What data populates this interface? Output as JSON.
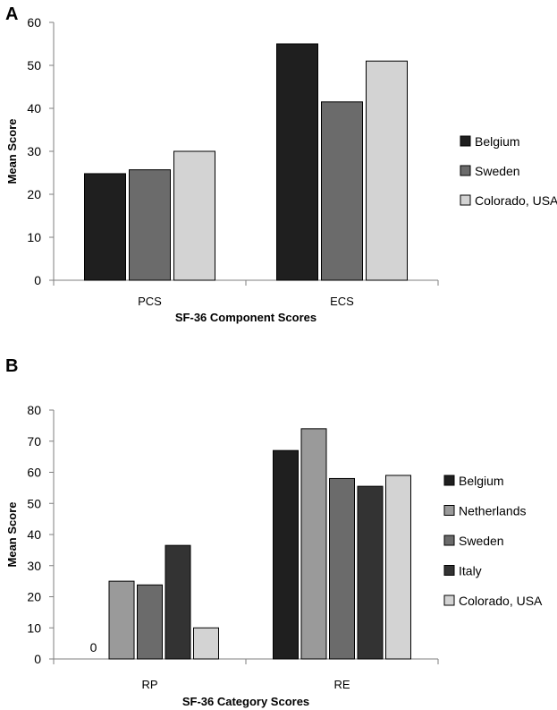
{
  "chart_data": [
    {
      "type": "bar",
      "panel_label": "A",
      "categories": [
        "PCS",
        "ECS"
      ],
      "series": [
        {
          "name": "Belgium",
          "color": "#1f1f1f",
          "values": [
            24.8,
            55
          ]
        },
        {
          "name": "Sweden",
          "color": "#6b6b6b",
          "values": [
            25.7,
            41.5
          ]
        },
        {
          "name": "Colorado, USA",
          "color": "#d3d3d3",
          "values": [
            30,
            51
          ]
        }
      ],
      "xlabel": "SF-36 Component Scores",
      "ylabel": "Mean Score",
      "ylim": [
        0,
        60
      ],
      "yticks": [
        0,
        10,
        20,
        30,
        40,
        50,
        60
      ],
      "grid": false,
      "legend_position": "right"
    },
    {
      "type": "bar",
      "panel_label": "B",
      "categories": [
        "RP",
        "RE"
      ],
      "series": [
        {
          "name": "Belgium",
          "color": "#1f1f1f",
          "values": [
            0,
            67
          ]
        },
        {
          "name": "Netherlands",
          "color": "#9a9a9a",
          "values": [
            25,
            74
          ]
        },
        {
          "name": "Sweden",
          "color": "#6b6b6b",
          "values": [
            23.8,
            58
          ]
        },
        {
          "name": "Italy",
          "color": "#333333",
          "values": [
            36.5,
            55.5
          ]
        },
        {
          "name": "Colorado, USA",
          "color": "#d3d3d3",
          "values": [
            10,
            59
          ]
        }
      ],
      "data_labels": [
        {
          "category": "RP",
          "series": "Belgium",
          "text": "0"
        }
      ],
      "xlabel": "SF-36 Category Scores",
      "ylabel": "Mean Score",
      "ylim": [
        0,
        80
      ],
      "yticks": [
        0,
        10,
        20,
        30,
        40,
        50,
        60,
        70,
        80
      ],
      "grid": false,
      "legend_position": "right"
    }
  ]
}
